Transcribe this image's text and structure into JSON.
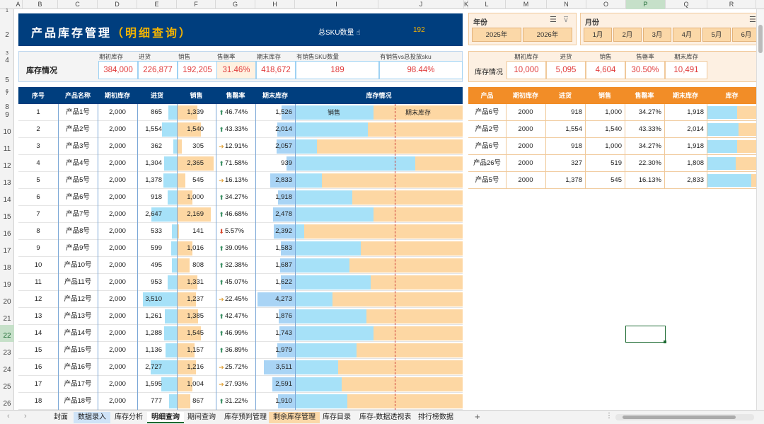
{
  "col_headers": [
    "A",
    "B",
    "C",
    "D",
    "E",
    "F",
    "G",
    "H",
    "I",
    "J",
    "K",
    "L",
    "M",
    "N",
    "O",
    "P",
    "Q",
    "R"
  ],
  "selected_col": "P",
  "row_headers": [
    "1",
    "2",
    "3",
    "4",
    "5",
    "6",
    "7",
    "8",
    "9",
    "10",
    "11",
    "12",
    "13",
    "14",
    "15",
    "16",
    "17",
    "18",
    "19",
    "20",
    "21",
    "22",
    "23",
    "24",
    "25",
    "26"
  ],
  "selected_row": "22",
  "title": {
    "main": "产品库存管理",
    "sub": "（明细查询）",
    "sku_label": "总SKU数量",
    "sku_value": "192"
  },
  "summary": {
    "label": "库存情况",
    "headers": [
      "期初库存",
      "进货",
      "销售",
      "售罄率",
      "期末库存",
      "有销售SKU数量",
      "有销售vs总投放sku"
    ],
    "values": [
      "384,000",
      "226,877",
      "192,205",
      "31.46%",
      "418,672",
      "189",
      "98.44%"
    ]
  },
  "table": {
    "headers": [
      "序号",
      "产品名称",
      "期初库存",
      "进货",
      "销售",
      "售罄率",
      "期末库存",
      "库存情况"
    ],
    "legend": [
      "销售",
      "期末库存"
    ],
    "rows": [
      {
        "no": "1",
        "name": "产品1号",
        "start": "2,000",
        "in": "865",
        "sale": "1,339",
        "rate": "46.74%",
        "dir": "up",
        "end": "1,526",
        "sv": 1339,
        "ev": 1526,
        "iv": 865
      },
      {
        "no": "2",
        "name": "产品2号",
        "start": "2,000",
        "in": "1,554",
        "sale": "1,540",
        "rate": "43.33%",
        "dir": "up",
        "end": "2,014",
        "sv": 1540,
        "ev": 2014,
        "iv": 1554
      },
      {
        "no": "3",
        "name": "产品3号",
        "start": "2,000",
        "in": "362",
        "sale": "305",
        "rate": "12.91%",
        "dir": "flat",
        "end": "2,057",
        "sv": 305,
        "ev": 2057,
        "iv": 362
      },
      {
        "no": "4",
        "name": "产品4号",
        "start": "2,000",
        "in": "1,304",
        "sale": "2,365",
        "rate": "71.58%",
        "dir": "up",
        "end": "939",
        "sv": 2365,
        "ev": 939,
        "iv": 1304
      },
      {
        "no": "5",
        "name": "产品5号",
        "start": "2,000",
        "in": "1,378",
        "sale": "545",
        "rate": "16.13%",
        "dir": "flat",
        "end": "2,833",
        "sv": 545,
        "ev": 2833,
        "iv": 1378
      },
      {
        "no": "6",
        "name": "产品6号",
        "start": "2,000",
        "in": "918",
        "sale": "1,000",
        "rate": "34.27%",
        "dir": "up",
        "end": "1,918",
        "sv": 1000,
        "ev": 1918,
        "iv": 918
      },
      {
        "no": "7",
        "name": "产品7号",
        "start": "2,000",
        "in": "2,647",
        "sale": "2,169",
        "rate": "46.68%",
        "dir": "up",
        "end": "2,478",
        "sv": 2169,
        "ev": 2478,
        "iv": 2647
      },
      {
        "no": "8",
        "name": "产品8号",
        "start": "2,000",
        "in": "533",
        "sale": "141",
        "rate": "5.57%",
        "dir": "down",
        "end": "2,392",
        "sv": 141,
        "ev": 2392,
        "iv": 533
      },
      {
        "no": "9",
        "name": "产品9号",
        "start": "2,000",
        "in": "599",
        "sale": "1,016",
        "rate": "39.09%",
        "dir": "up",
        "end": "1,583",
        "sv": 1016,
        "ev": 1583,
        "iv": 599
      },
      {
        "no": "10",
        "name": "产品10号",
        "start": "2,000",
        "in": "495",
        "sale": "808",
        "rate": "32.38%",
        "dir": "up",
        "end": "1,687",
        "sv": 808,
        "ev": 1687,
        "iv": 495
      },
      {
        "no": "11",
        "name": "产品11号",
        "start": "2,000",
        "in": "953",
        "sale": "1,331",
        "rate": "45.07%",
        "dir": "up",
        "end": "1,622",
        "sv": 1331,
        "ev": 1622,
        "iv": 953
      },
      {
        "no": "12",
        "name": "产品12号",
        "start": "2,000",
        "in": "3,510",
        "sale": "1,237",
        "rate": "22.45%",
        "dir": "flat",
        "end": "4,273",
        "sv": 1237,
        "ev": 4273,
        "iv": 3510
      },
      {
        "no": "13",
        "name": "产品13号",
        "start": "2,000",
        "in": "1,261",
        "sale": "1,385",
        "rate": "42.47%",
        "dir": "up",
        "end": "1,876",
        "sv": 1385,
        "ev": 1876,
        "iv": 1261
      },
      {
        "no": "14",
        "name": "产品14号",
        "start": "2,000",
        "in": "1,288",
        "sale": "1,545",
        "rate": "46.99%",
        "dir": "up",
        "end": "1,743",
        "sv": 1545,
        "ev": 1743,
        "iv": 1288
      },
      {
        "no": "15",
        "name": "产品15号",
        "start": "2,000",
        "in": "1,136",
        "sale": "1,157",
        "rate": "36.89%",
        "dir": "up",
        "end": "1,979",
        "sv": 1157,
        "ev": 1979,
        "iv": 1136
      },
      {
        "no": "16",
        "name": "产品16号",
        "start": "2,000",
        "in": "2,727",
        "sale": "1,216",
        "rate": "25.72%",
        "dir": "flat",
        "end": "3,511",
        "sv": 1216,
        "ev": 3511,
        "iv": 2727
      },
      {
        "no": "17",
        "name": "产品17号",
        "start": "2,000",
        "in": "1,595",
        "sale": "1,004",
        "rate": "27.93%",
        "dir": "flat",
        "end": "2,591",
        "sv": 1004,
        "ev": 2591,
        "iv": 1595
      },
      {
        "no": "18",
        "name": "产品18号",
        "start": "2,000",
        "in": "777",
        "sale": "867",
        "rate": "31.22%",
        "dir": "up",
        "end": "1,910",
        "sv": 867,
        "ev": 1910,
        "iv": 777
      }
    ]
  },
  "year_slicer": {
    "title": "年份",
    "items": [
      "2025年",
      "2026年"
    ]
  },
  "month_slicer": {
    "title": "月份",
    "items": [
      "1月",
      "2月",
      "3月",
      "4月",
      "5月",
      "6月"
    ]
  },
  "right_summary": {
    "label": "库存情况",
    "headers": [
      "期初库存",
      "进货",
      "销售",
      "售罄率",
      "期末库存"
    ],
    "values": [
      "10,000",
      "5,095",
      "4,604",
      "30.50%",
      "10,491"
    ]
  },
  "right_table": {
    "headers": [
      "产品",
      "期初库存",
      "进货",
      "销售",
      "售罄率",
      "期末库存",
      "库存"
    ],
    "rows": [
      {
        "name": "产品6号",
        "start": "2000",
        "in": "918",
        "sale": "1,000",
        "rate": "34.27%",
        "end": "1,918",
        "ev": 1918,
        "sv": 1000
      },
      {
        "name": "产品2号",
        "start": "2000",
        "in": "1,554",
        "sale": "1,540",
        "rate": "43.33%",
        "end": "2,014",
        "ev": 2014,
        "sv": 1540
      },
      {
        "name": "产品6号",
        "start": "2000",
        "in": "918",
        "sale": "1,000",
        "rate": "34.27%",
        "end": "1,918",
        "ev": 1918,
        "sv": 1000
      },
      {
        "name": "产品26号",
        "start": "2000",
        "in": "327",
        "sale": "519",
        "rate": "22.30%",
        "end": "1,808",
        "ev": 1808,
        "sv": 519
      },
      {
        "name": "产品5号",
        "start": "2000",
        "in": "1,378",
        "sale": "545",
        "rate": "16.13%",
        "end": "2,833",
        "ev": 2833,
        "sv": 545
      }
    ]
  },
  "sheet_tabs": [
    "封面",
    "数据录入",
    "库存分析",
    "明细查询",
    "期间查询",
    "库存预判管理",
    "剩余库存管理",
    "库存目录",
    "库存-数据透视表",
    "排行榜数据"
  ],
  "active_tab": "明细查询",
  "colors": {
    "navy": "#003e7e",
    "accent": "#f4b400",
    "orange": "#f28d27",
    "blue_bar": "#a6e1f8",
    "orange_bar": "#fdd7a3",
    "red_text": "#e03c3c"
  }
}
